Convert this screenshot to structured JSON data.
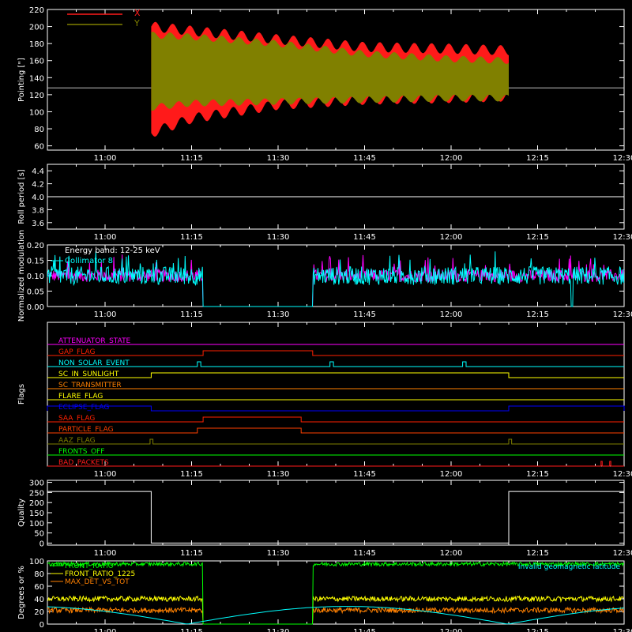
{
  "colors": {
    "background": "#000000",
    "axes": "#ffffff",
    "x": "#ff1a1a",
    "y": "#808000",
    "magenta": "#ff00ff",
    "cyan": "#00ffff",
    "green": "#00ff00",
    "yellow": "#ffff00",
    "orange": "#ff8000",
    "blue": "#0000ff",
    "darkorange": "#ff4000"
  },
  "time_axis": {
    "xlim": [
      "10:50",
      "12:30"
    ],
    "ticks": [
      "11:00",
      "11:15",
      "11:30",
      "11:45",
      "12:00",
      "12:15",
      "12:30"
    ]
  },
  "chart_data": [
    {
      "type": "area",
      "ylabel": "Pointing [\"]",
      "ylim": [
        55,
        220
      ],
      "yticks": [
        "60",
        "80",
        "100",
        "120",
        "140",
        "160",
        "180",
        "200",
        "220"
      ],
      "legend": "top-left",
      "series": [
        {
          "name": "X",
          "color": "#ff1a1a",
          "baseline": 128,
          "envelope": {
            "t": [
              "11:08",
              "11:15",
              "11:30",
              "11:45",
              "12:00",
              "12:10"
            ],
            "upper": [
              200,
              195,
              185,
              176,
              174,
              172
            ],
            "lower": [
              75,
              92,
              108,
              114,
              116,
              118
            ]
          }
        },
        {
          "name": "Y",
          "color": "#808000",
          "baseline": 128,
          "envelope": {
            "t": [
              "11:08",
              "11:15",
              "11:30",
              "11:45",
              "12:00",
              "12:10"
            ],
            "upper": [
              190,
              188,
              180,
              168,
              162,
              160
            ],
            "lower": [
              105,
              110,
              112,
              114,
              116,
              116
            ]
          }
        }
      ],
      "range": [
        "11:08",
        "12:10"
      ]
    },
    {
      "type": "line",
      "ylabel": "Roll period [s]",
      "ylim": [
        3.5,
        4.5
      ],
      "yticks": [
        "3.6",
        "3.8",
        "4.0",
        "4.2",
        "4.4"
      ],
      "series": [
        {
          "name": "",
          "color": "#ffffff",
          "t": [
            "10:50",
            "12:30"
          ],
          "values": [
            4.0,
            4.0
          ]
        }
      ]
    },
    {
      "type": "line",
      "ylabel": "Normalized modulation",
      "ylim": [
        0,
        0.2
      ],
      "yticks": [
        "0.00",
        "0.05",
        "0.10",
        "0.15",
        "0.20"
      ],
      "annotations": [
        "Energy band: 12-25 keV"
      ],
      "legend": "top-left",
      "series": [
        {
          "name": "Collimator 8",
          "color": "#00ffff",
          "mean": 0.1,
          "noise": 0.03
        },
        {
          "name": "",
          "color": "#ff00ff",
          "mean": 0.1,
          "noise": 0.02
        }
      ],
      "gap": [
        "11:17",
        "11:36"
      ],
      "dip": "12:21"
    },
    {
      "type": "line",
      "ylabel": "Flags",
      "flags": [
        {
          "name": "ATTENUATOR_STATE",
          "color": "#ff00ff",
          "on": []
        },
        {
          "name": "GAP_FLAG",
          "color": "#ff2000",
          "on": [
            [
              "11:17",
              "11:36"
            ]
          ]
        },
        {
          "name": "NON_SOLAR_EVENT",
          "color": "#00ffff",
          "on": [
            [
              "11:16",
              "11:16.6"
            ],
            [
              "11:39",
              "11:39.6"
            ],
            [
              "12:02",
              "12:02.6"
            ]
          ]
        },
        {
          "name": "SC_IN_SUNLIGHT",
          "color": "#ffff00",
          "on": [
            [
              "11:08",
              "12:10"
            ]
          ]
        },
        {
          "name": "SC_TRANSMITTER",
          "color": "#ff8000",
          "on": []
        },
        {
          "name": "FLARE_FLAG",
          "color": "#ffff00",
          "on": []
        },
        {
          "name": "ECLIPSE_FLAG",
          "color": "#0000ff",
          "on": [
            [
              "10:50",
              "11:08"
            ],
            [
              "12:10",
              "12:30"
            ]
          ]
        },
        {
          "name": "SAA_FLAG",
          "color": "#ff2000",
          "on": [
            [
              "11:17",
              "11:34"
            ]
          ]
        },
        {
          "name": "PARTICLE_FLAG",
          "color": "#ff4000",
          "on": [
            [
              "11:16",
              "11:34"
            ]
          ]
        },
        {
          "name": "AAZ_FLAG",
          "color": "#808000",
          "on": [
            [
              "11:07.8",
              "11:08.3"
            ],
            [
              "12:10",
              "12:10.5"
            ]
          ]
        },
        {
          "name": "FRONTS_OFF",
          "color": "#00ff00",
          "on": []
        },
        {
          "name": "BAD_PACKETS",
          "color": "#ff1a1a",
          "on": [
            [
              "12:26",
              "12:26.2"
            ],
            [
              "12:27.5",
              "12:27.7"
            ]
          ]
        }
      ]
    },
    {
      "type": "line",
      "ylabel": "Quality",
      "ylim": [
        -10,
        310
      ],
      "yticks": [
        "0",
        "50",
        "100",
        "150",
        "200",
        "250",
        "300"
      ],
      "series": [
        {
          "name": "",
          "color": "#ffffff",
          "t": [
            "10:50",
            "11:08",
            "11:08",
            "12:10",
            "12:10",
            "12:30"
          ],
          "values": [
            255,
            255,
            0,
            0,
            255,
            255
          ]
        }
      ]
    },
    {
      "type": "line",
      "ylabel": "Degrees or %",
      "ylim": [
        0,
        100
      ],
      "yticks": [
        "0",
        "20",
        "40",
        "60",
        "80",
        "100"
      ],
      "legend": "top-left",
      "annotations": [
        "Invalid geomagnetic latitude"
      ],
      "series": [
        {
          "name": "FRONT_RATIO",
          "color": "#00ff00",
          "mean": 95
        },
        {
          "name": "FRONT_RATIO_1225",
          "color": "#ffff00",
          "mean": 40
        },
        {
          "name": "MAX_DET_VS_TOT",
          "color": "#ff8000",
          "mean": 22
        },
        {
          "name": "",
          "color": "#00ffff",
          "note": "geomagnetic latitude"
        }
      ],
      "gap": [
        "11:17",
        "11:36"
      ]
    }
  ]
}
